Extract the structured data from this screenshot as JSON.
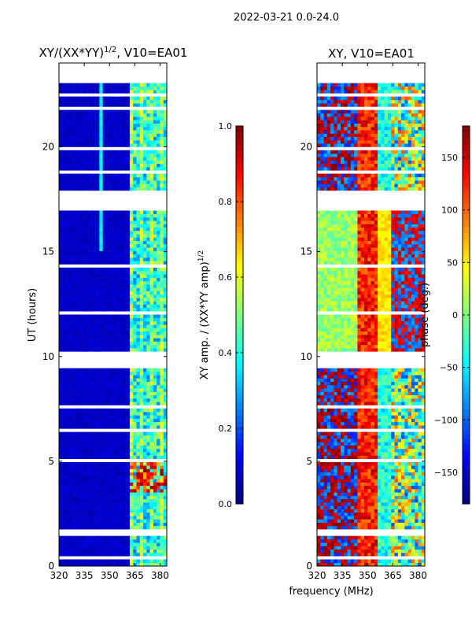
{
  "chart_data": [
    {
      "type": "heatmap",
      "suptitle": "2022-03-21 0.0-24.0",
      "title": "XY/(XX*YY)",
      "title_exp": "1/2",
      "title_suffix": ", V10=EA01",
      "xlabel": "frequency (MHz)",
      "ylabel": "UT (hours)",
      "xlim": [
        320,
        384
      ],
      "ylim": [
        0,
        24
      ],
      "xticks": [
        320,
        335,
        350,
        365,
        380
      ],
      "xtick_labels": [
        "320",
        "335",
        "350",
        "365",
        "380"
      ],
      "yticks": [
        0,
        5,
        10,
        15,
        20
      ],
      "ytick_labels": [
        "0",
        "5",
        "10",
        "15",
        "20"
      ],
      "colormap": "jet",
      "colorbar": {
        "label": "XY amp. / (XX*YY amp)",
        "label_exp": "1/2",
        "range": [
          0.0,
          1.0
        ],
        "ticks": [
          0.0,
          0.2,
          0.4,
          0.6,
          0.8,
          1.0
        ],
        "tick_labels": [
          "0.0",
          "0.2",
          "0.4",
          "0.6",
          "0.8",
          "1.0"
        ]
      },
      "description_of_values": "low amplitude (~0.05) below 362 MHz; 0.3-0.6 above 362 MHz; strong 0.7-1.0 patches near 3.5-5 h above 362 MHz"
    },
    {
      "type": "heatmap",
      "title": "XY, V10=EA01",
      "xlim": [
        320,
        384
      ],
      "ylim": [
        0,
        24
      ],
      "xticks": [
        320,
        335,
        350,
        365,
        380
      ],
      "xtick_labels": [
        "320",
        "335",
        "350",
        "365",
        "380"
      ],
      "yticks": [
        0,
        5,
        10,
        15,
        20
      ],
      "ytick_labels": [
        "0",
        "5",
        "10",
        "15",
        "20"
      ],
      "colormap": "jet",
      "colorbar": {
        "label": "phase (deg.)",
        "range": [
          -180,
          180
        ],
        "ticks": [
          -150,
          -100,
          -50,
          0,
          50,
          100,
          150
        ],
        "tick_labels": [
          "−150",
          "−100",
          "−50",
          "0",
          "50",
          "100",
          "150"
        ]
      }
    }
  ],
  "flagged_hours": [
    [
      23.0,
      24.0
    ],
    [
      16.95,
      17.9
    ],
    [
      9.5,
      10.3
    ],
    [
      7.55,
      7.7
    ],
    [
      6.45,
      6.55
    ],
    [
      5.0,
      5.12
    ],
    [
      3.45,
      3.6
    ],
    [
      1.5,
      1.7
    ],
    [
      0.4,
      0.5
    ],
    [
      21.8,
      22.0
    ],
    [
      19.8,
      20.0
    ],
    [
      18.8,
      18.9
    ],
    [
      14.3,
      14.4
    ],
    [
      12.0,
      12.1
    ],
    [
      22.4,
      22.5
    ],
    [
      20.6,
      20.7
    ],
    [
      18.2,
      18.3
    ]
  ]
}
